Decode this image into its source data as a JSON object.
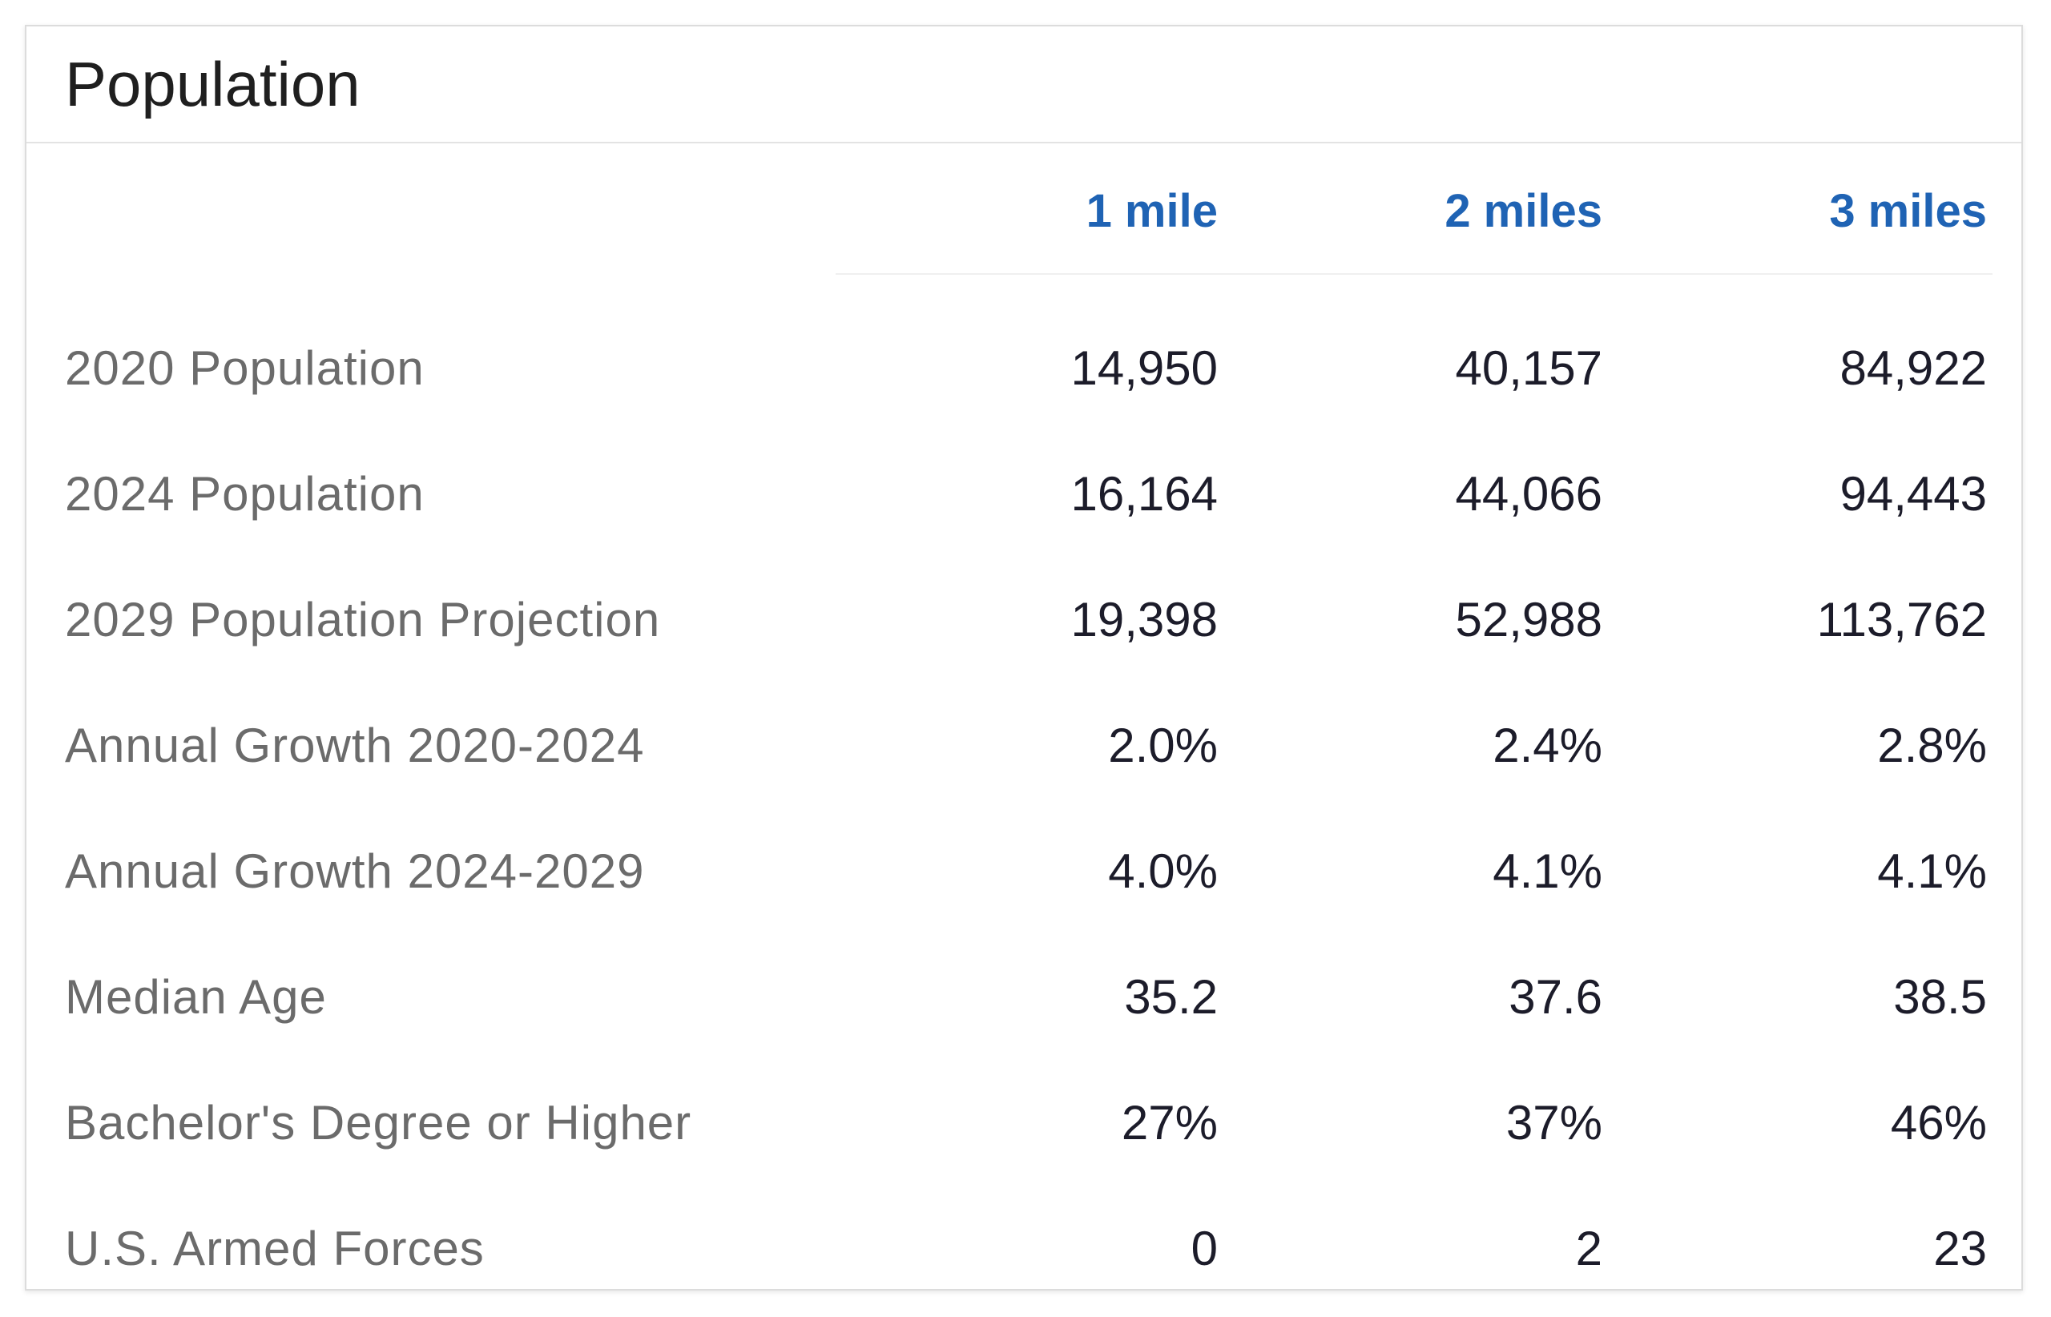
{
  "card": {
    "title": "Population"
  },
  "columns": [
    "1 mile",
    "2 miles",
    "3 miles"
  ],
  "rows": [
    {
      "label": "2020 Population",
      "values": [
        "14,950",
        "40,157",
        "84,922"
      ]
    },
    {
      "label": "2024 Population",
      "values": [
        "16,164",
        "44,066",
        "94,443"
      ]
    },
    {
      "label": "2029 Population Projection",
      "values": [
        "19,398",
        "52,988",
        "113,762"
      ]
    },
    {
      "label": "Annual Growth 2020-2024",
      "values": [
        "2.0%",
        "2.4%",
        "2.8%"
      ]
    },
    {
      "label": "Annual Growth 2024-2029",
      "values": [
        "4.0%",
        "4.1%",
        "4.1%"
      ]
    },
    {
      "label": "Median Age",
      "values": [
        "35.2",
        "37.6",
        "38.5"
      ]
    },
    {
      "label": "Bachelor's Degree or Higher",
      "values": [
        "27%",
        "37%",
        "46%"
      ]
    },
    {
      "label": "U.S. Armed Forces",
      "values": [
        "0",
        "2",
        "23"
      ]
    }
  ],
  "colors": {
    "column_header": "#1f63b4",
    "label_text": "#6b6b6b",
    "value_text": "#1c1c2a",
    "title_text": "#1f1f1f"
  }
}
